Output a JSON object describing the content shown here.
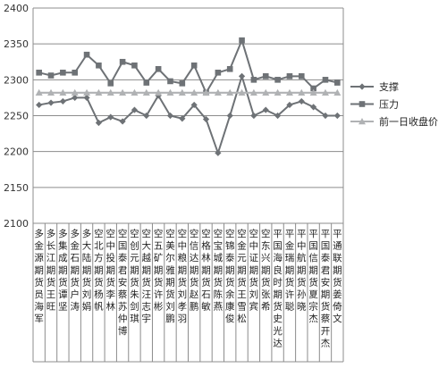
{
  "chart_data": {
    "type": "line",
    "ylim": [
      2100,
      2400
    ],
    "yticks": [
      2100,
      2150,
      2200,
      2250,
      2300,
      2350,
      2400
    ],
    "grid": true,
    "legend_position": "right",
    "categories": [
      "多金源期货员海军",
      "多长江期货王旺",
      "多集成期货谭坚",
      "多金石期货户涛",
      "多大陆期货刘娟",
      "空北方期货杨帆",
      "空中投期货李林",
      "空国泰君安蔡苏仲博",
      "空创元期货朱剑琪",
      "空大越期货汪志宇",
      "空五矿期货许彬",
      "空美尔雅期货刘鹏",
      "空中粮期货刘孝羽",
      "空信达期货赵鹏",
      "空格林期货石敏",
      "空宝城期货陈燕",
      "空锦泰期货余康俊",
      "空金元期货王雪松",
      "空中证期货刘宾",
      "空东兴期货张希",
      "平国海良时期货史光达",
      "平金瑞期货许聪",
      "平中航期货孙晓",
      "平国信期货夏宗杰",
      "平国泰君安期货蔡开杰",
      "平通联期货姜倚文"
    ],
    "series": [
      {
        "name": "支撑",
        "marker": "diamond",
        "color": "#6e7276",
        "values": [
          2265,
          2268,
          2270,
          2275,
          2275,
          2240,
          2248,
          2242,
          2258,
          2250,
          2278,
          2250,
          2246,
          2265,
          2245,
          2198,
          2250,
          2305,
          2250,
          2258,
          2250,
          2265,
          2270,
          2262,
          2250,
          2250
        ]
      },
      {
        "name": "压力",
        "marker": "square",
        "color": "#6e7276",
        "values": [
          2310,
          2306,
          2310,
          2310,
          2335,
          2320,
          2295,
          2325,
          2320,
          2296,
          2315,
          2298,
          2295,
          2320,
          2282,
          2310,
          2315,
          2355,
          2300,
          2305,
          2300,
          2305,
          2305,
          2288,
          2300,
          2296
        ]
      },
      {
        "name": "前一日收盘价",
        "marker": "triangle",
        "color": "#b0b2b4",
        "values": [
          2282,
          2282,
          2282,
          2282,
          2282,
          2282,
          2282,
          2282,
          2282,
          2282,
          2282,
          2282,
          2282,
          2282,
          2282,
          2282,
          2282,
          2282,
          2282,
          2282,
          2282,
          2282,
          2282,
          2282,
          2282,
          2282
        ]
      }
    ]
  }
}
